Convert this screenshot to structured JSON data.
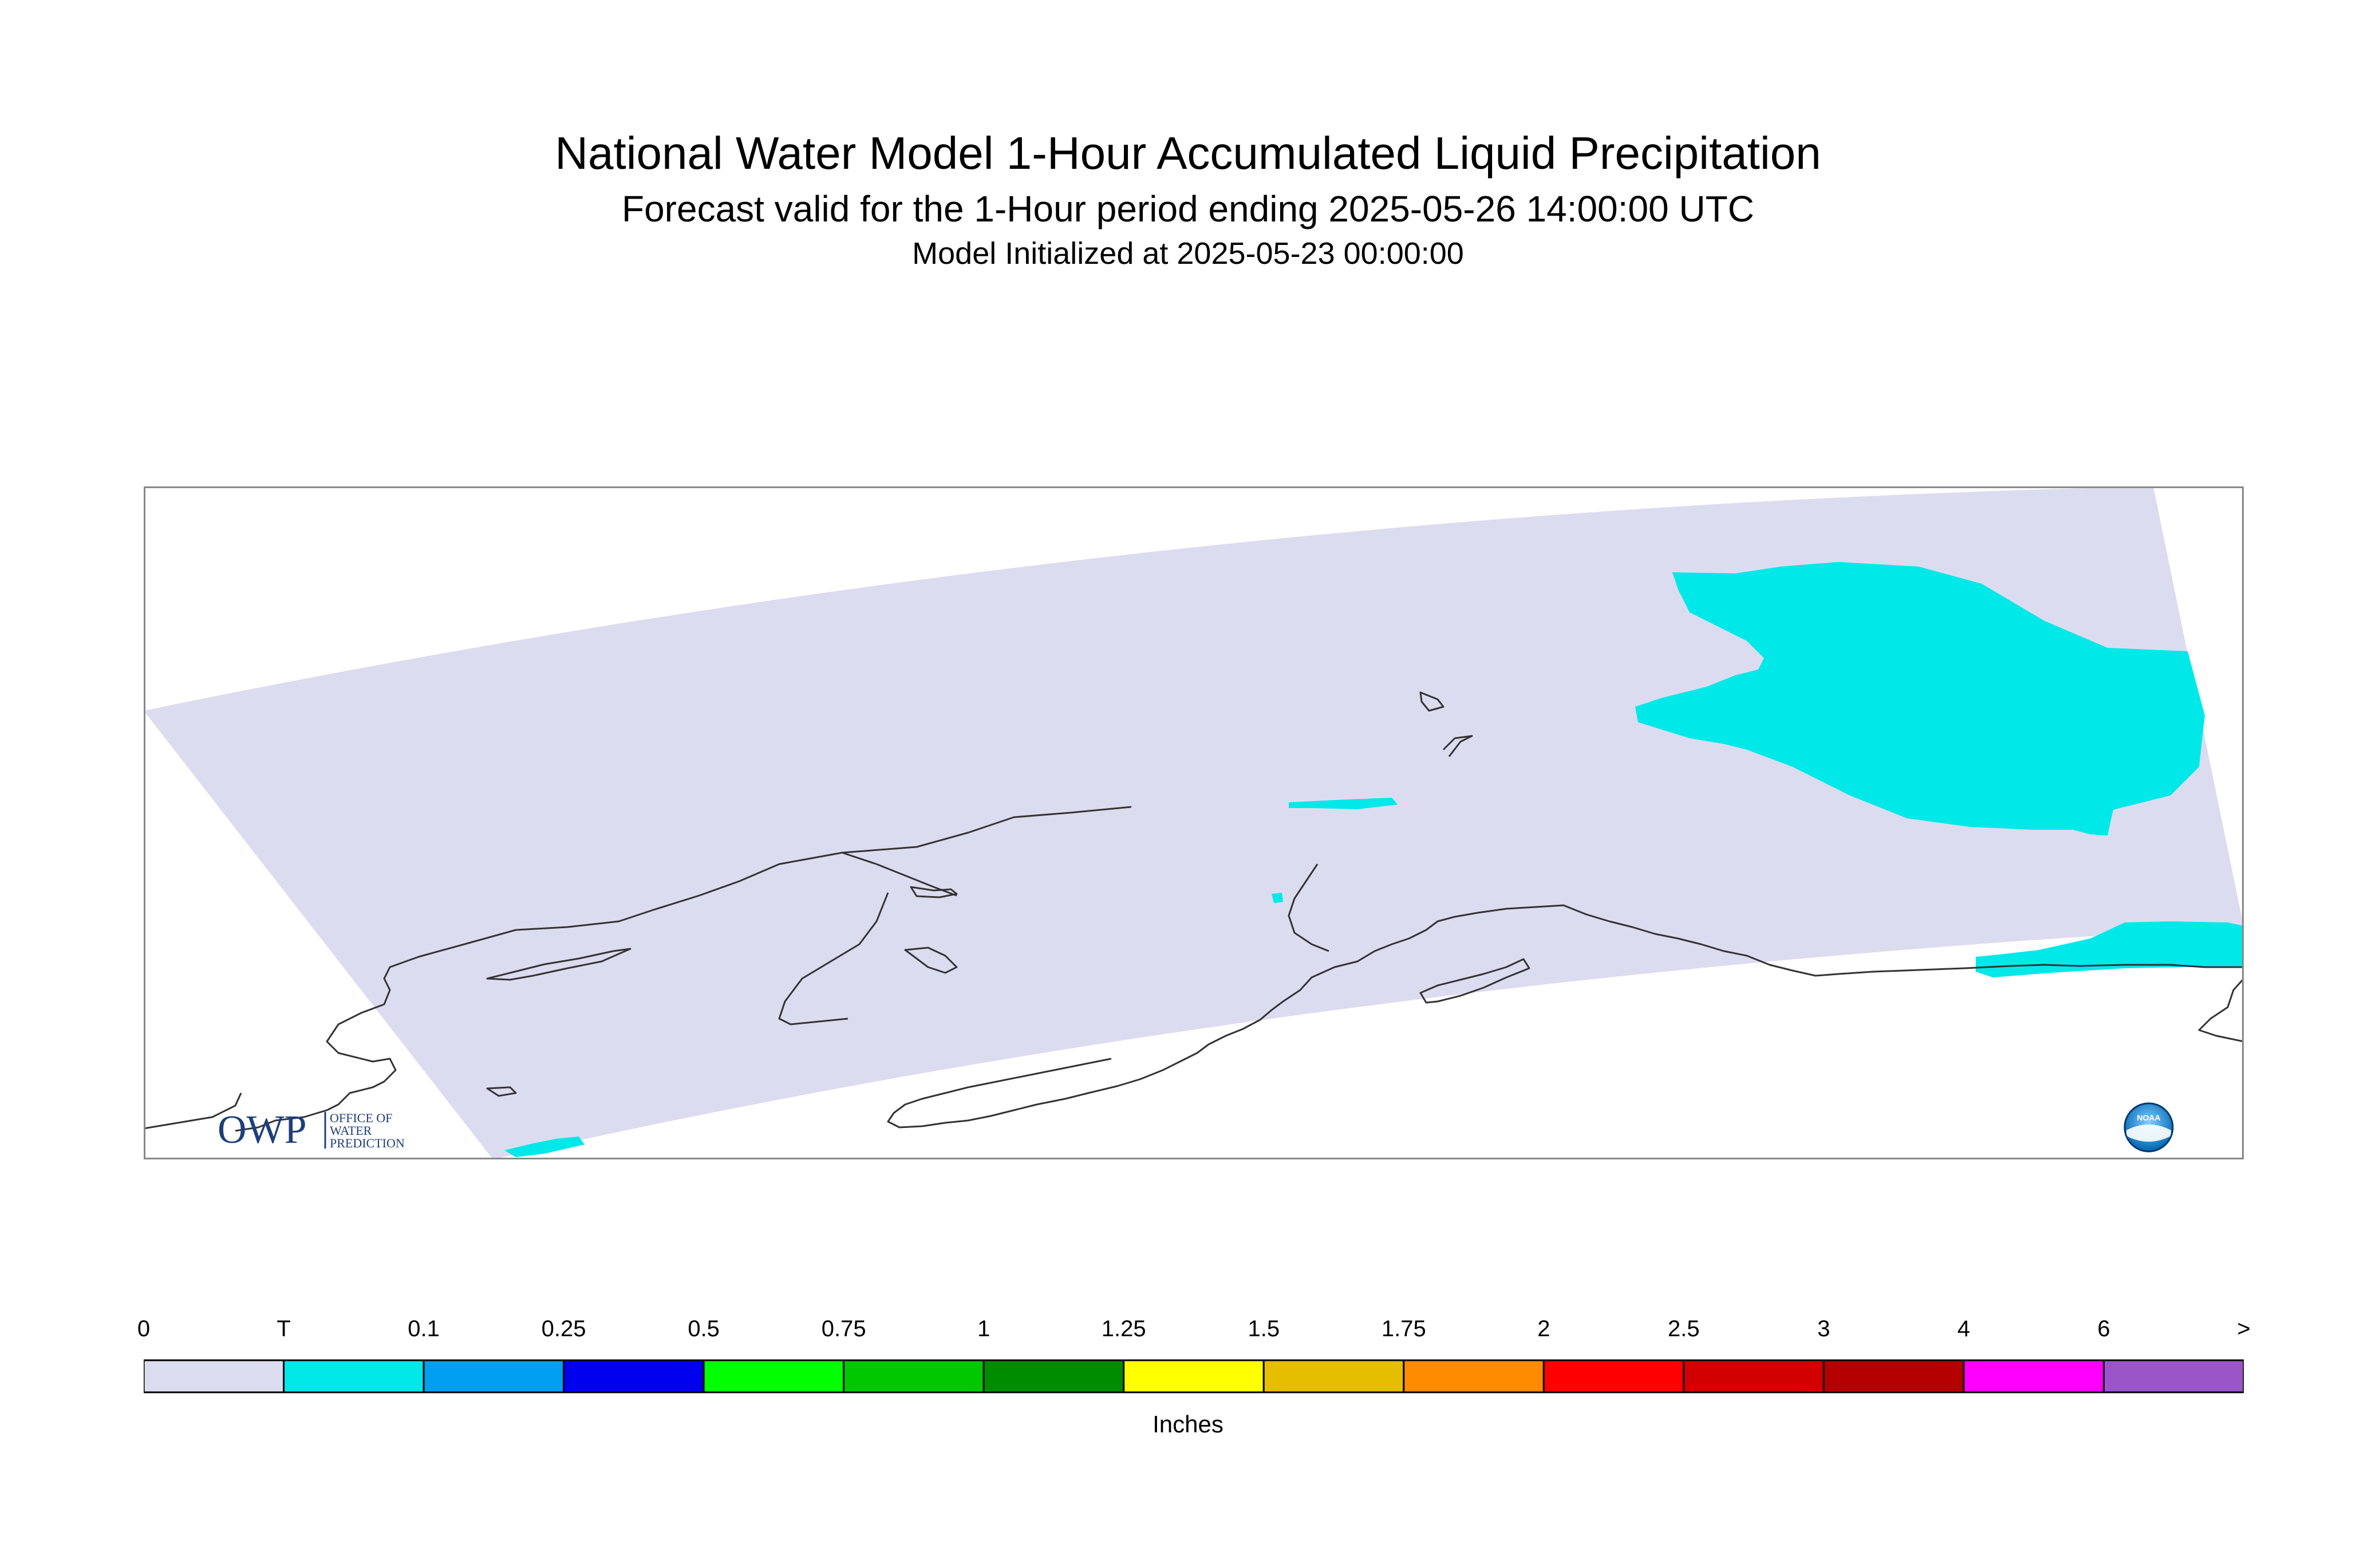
{
  "header": {
    "title": "National Water Model 1-Hour Accumulated Liquid Precipitation",
    "subtitle": "Forecast valid for the 1-Hour period ending 2025-05-26 14:00:00 UTC",
    "init": "Model Initialized at 2025-05-23 00:00:00"
  },
  "legend": {
    "units": "Inches",
    "tick_labels": [
      "0",
      "T",
      "0.1",
      "0.25",
      "0.5",
      "0.75",
      "1",
      "1.25",
      "1.5",
      "1.75",
      "2",
      "2.5",
      "3",
      "4",
      "6",
      ">"
    ],
    "bins": [
      {
        "color": "#dcdcf0"
      },
      {
        "color": "#00e8e8"
      },
      {
        "color": "#009ff0"
      },
      {
        "color": "#0000ee"
      },
      {
        "color": "#00ff00"
      },
      {
        "color": "#00c800"
      },
      {
        "color": "#008c00"
      },
      {
        "color": "#ffff00"
      },
      {
        "color": "#e6be00"
      },
      {
        "color": "#ff8c00"
      },
      {
        "color": "#ff0000"
      },
      {
        "color": "#d20000"
      },
      {
        "color": "#b40000"
      },
      {
        "color": "#ff00ff"
      },
      {
        "color": "#9a55c8"
      }
    ]
  },
  "map": {
    "domain_fill": "#dcdcf0",
    "precip_fill": "#00e8e8",
    "coastline_color": "#333333",
    "region_shown": "Alaska"
  },
  "logos": {
    "owp_mark": "OWP",
    "owp_text": [
      "OFFICE OF",
      "WATER",
      "PREDICTION"
    ],
    "noaa_text": "NOAA"
  }
}
